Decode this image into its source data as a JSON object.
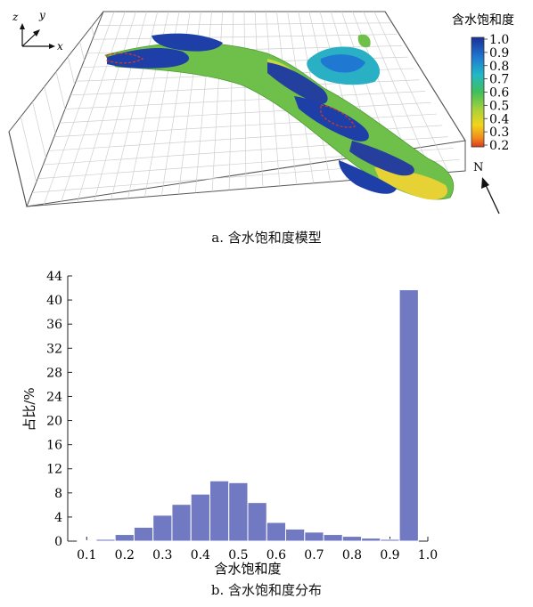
{
  "colors": {
    "bar_fill": "#7079c2",
    "bar_stroke": "#ffffff",
    "axis": "#222222",
    "grid_box": "#555555",
    "grid_line": "#c8c8c8",
    "saturation_high": "#1f3fa8",
    "saturation_mid": "#3fb85a",
    "saturation_low": "#f2d51b",
    "saturation_min": "#d93a1c"
  },
  "model": {
    "caption": "a. 含水饱和度模型",
    "axis_x": "x",
    "axis_y": "y",
    "axis_z": "z",
    "north": "N",
    "colorbar": {
      "title": "含水饱和度",
      "ticks": [
        "1.0",
        "0.9",
        "0.8",
        "0.7",
        "0.6",
        "0.5",
        "0.4",
        "0.3",
        "0.2"
      ]
    }
  },
  "histogram": {
    "caption": "b. 含水饱和度分布",
    "xlabel": "含水饱和度",
    "ylabel": "占比/%"
  },
  "chart_data": {
    "type": "bar",
    "xlabel": "含水饱和度",
    "ylabel": "占比/%",
    "xlim": [
      0.05,
      1.0
    ],
    "ylim": [
      0,
      44
    ],
    "x_ticks": [
      "0.1",
      "0.2",
      "0.3",
      "0.4",
      "0.5",
      "0.6",
      "0.7",
      "0.8",
      "0.9",
      "1.0"
    ],
    "y_ticks": [
      "0",
      "4",
      "8",
      "12",
      "16",
      "20",
      "24",
      "28",
      "32",
      "36",
      "40",
      "44"
    ],
    "bins": [
      0.1,
      0.15,
      0.2,
      0.25,
      0.3,
      0.35,
      0.4,
      0.45,
      0.5,
      0.55,
      0.6,
      0.65,
      0.7,
      0.75,
      0.8,
      0.85,
      0.9,
      0.95
    ],
    "bin_width": 0.05,
    "values": [
      0.1,
      0.3,
      1.1,
      2.3,
      4.3,
      6.1,
      7.8,
      10.0,
      9.7,
      6.4,
      3.1,
      2.0,
      1.5,
      1.1,
      0.8,
      0.5,
      0.3,
      41.7
    ]
  }
}
